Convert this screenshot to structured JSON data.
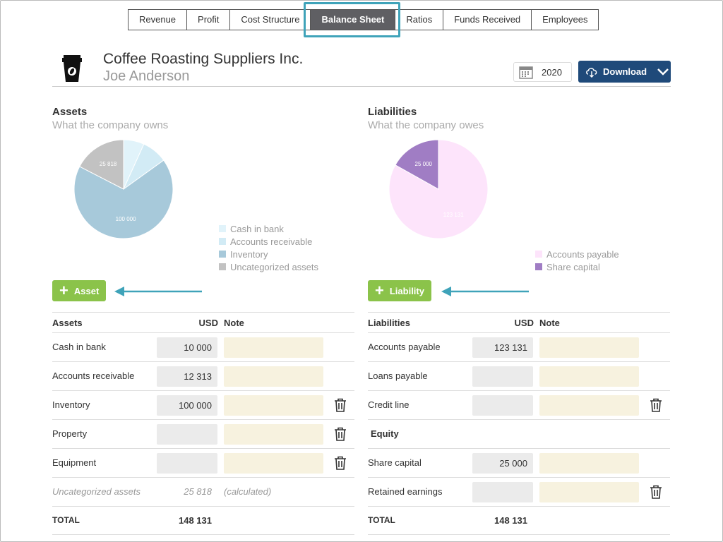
{
  "tabs": [
    "Revenue",
    "Profit",
    "Cost Structure",
    "Balance Sheet",
    "Ratios",
    "Funds Received",
    "Employees"
  ],
  "active_tab": "Balance Sheet",
  "header": {
    "company": "Coffee Roasting Suppliers Inc.",
    "person": "Joe Anderson",
    "year": "2020",
    "download_label": "Download"
  },
  "assets": {
    "title": "Assets",
    "subtitle": "What the company owns",
    "add_label": "Asset",
    "table_head": {
      "label": "Assets",
      "usd": "USD",
      "note": "Note"
    },
    "rows": [
      {
        "label": "Cash in bank",
        "value": "10 000"
      },
      {
        "label": "Accounts receivable",
        "value": "12 313"
      },
      {
        "label": "Inventory",
        "value": "100 000"
      },
      {
        "label": "Property",
        "value": ""
      },
      {
        "label": "Equipment",
        "value": ""
      }
    ],
    "uncategorized": {
      "label": "Uncategorized assets",
      "value": "25 818",
      "note": "(calculated)"
    },
    "total": {
      "label": "TOTAL",
      "value": "148 131"
    }
  },
  "liabilities": {
    "title": "Liabilities",
    "subtitle": "What the company owes",
    "add_label": "Liability",
    "table_head": {
      "label": "Liabilities",
      "usd": "USD",
      "note": "Note"
    },
    "rows": [
      {
        "label": "Accounts payable",
        "value": "123 131"
      },
      {
        "label": "Loans payable",
        "value": ""
      },
      {
        "label": "Credit line",
        "value": ""
      }
    ],
    "equity_label": "Equity",
    "equity_rows": [
      {
        "label": "Share capital",
        "value": "25 000"
      },
      {
        "label": "Retained earnings",
        "value": ""
      }
    ],
    "total": {
      "label": "TOTAL",
      "value": "148 131"
    }
  },
  "chart_data": [
    {
      "type": "pie",
      "slices": [
        {
          "label": "Cash in bank",
          "value": 10000,
          "color": "#e1f3fa"
        },
        {
          "label": "Accounts receivable",
          "value": 12313,
          "color": "#d2ebf5"
        },
        {
          "label": "Inventory",
          "value": 100000,
          "color": "#a7c9da"
        },
        {
          "label": "Uncategorized assets",
          "value": 25818,
          "color": "#c2c2c2"
        }
      ],
      "data_labels": [
        "",
        "",
        "100 000",
        "25 818"
      ]
    },
    {
      "type": "pie",
      "slices": [
        {
          "label": "Accounts payable",
          "value": 123131,
          "color": "#fde4fb"
        },
        {
          "label": "Share capital",
          "value": 25000,
          "color": "#a07dc4"
        }
      ],
      "data_labels": [
        "123 131",
        "25 000"
      ]
    }
  ]
}
